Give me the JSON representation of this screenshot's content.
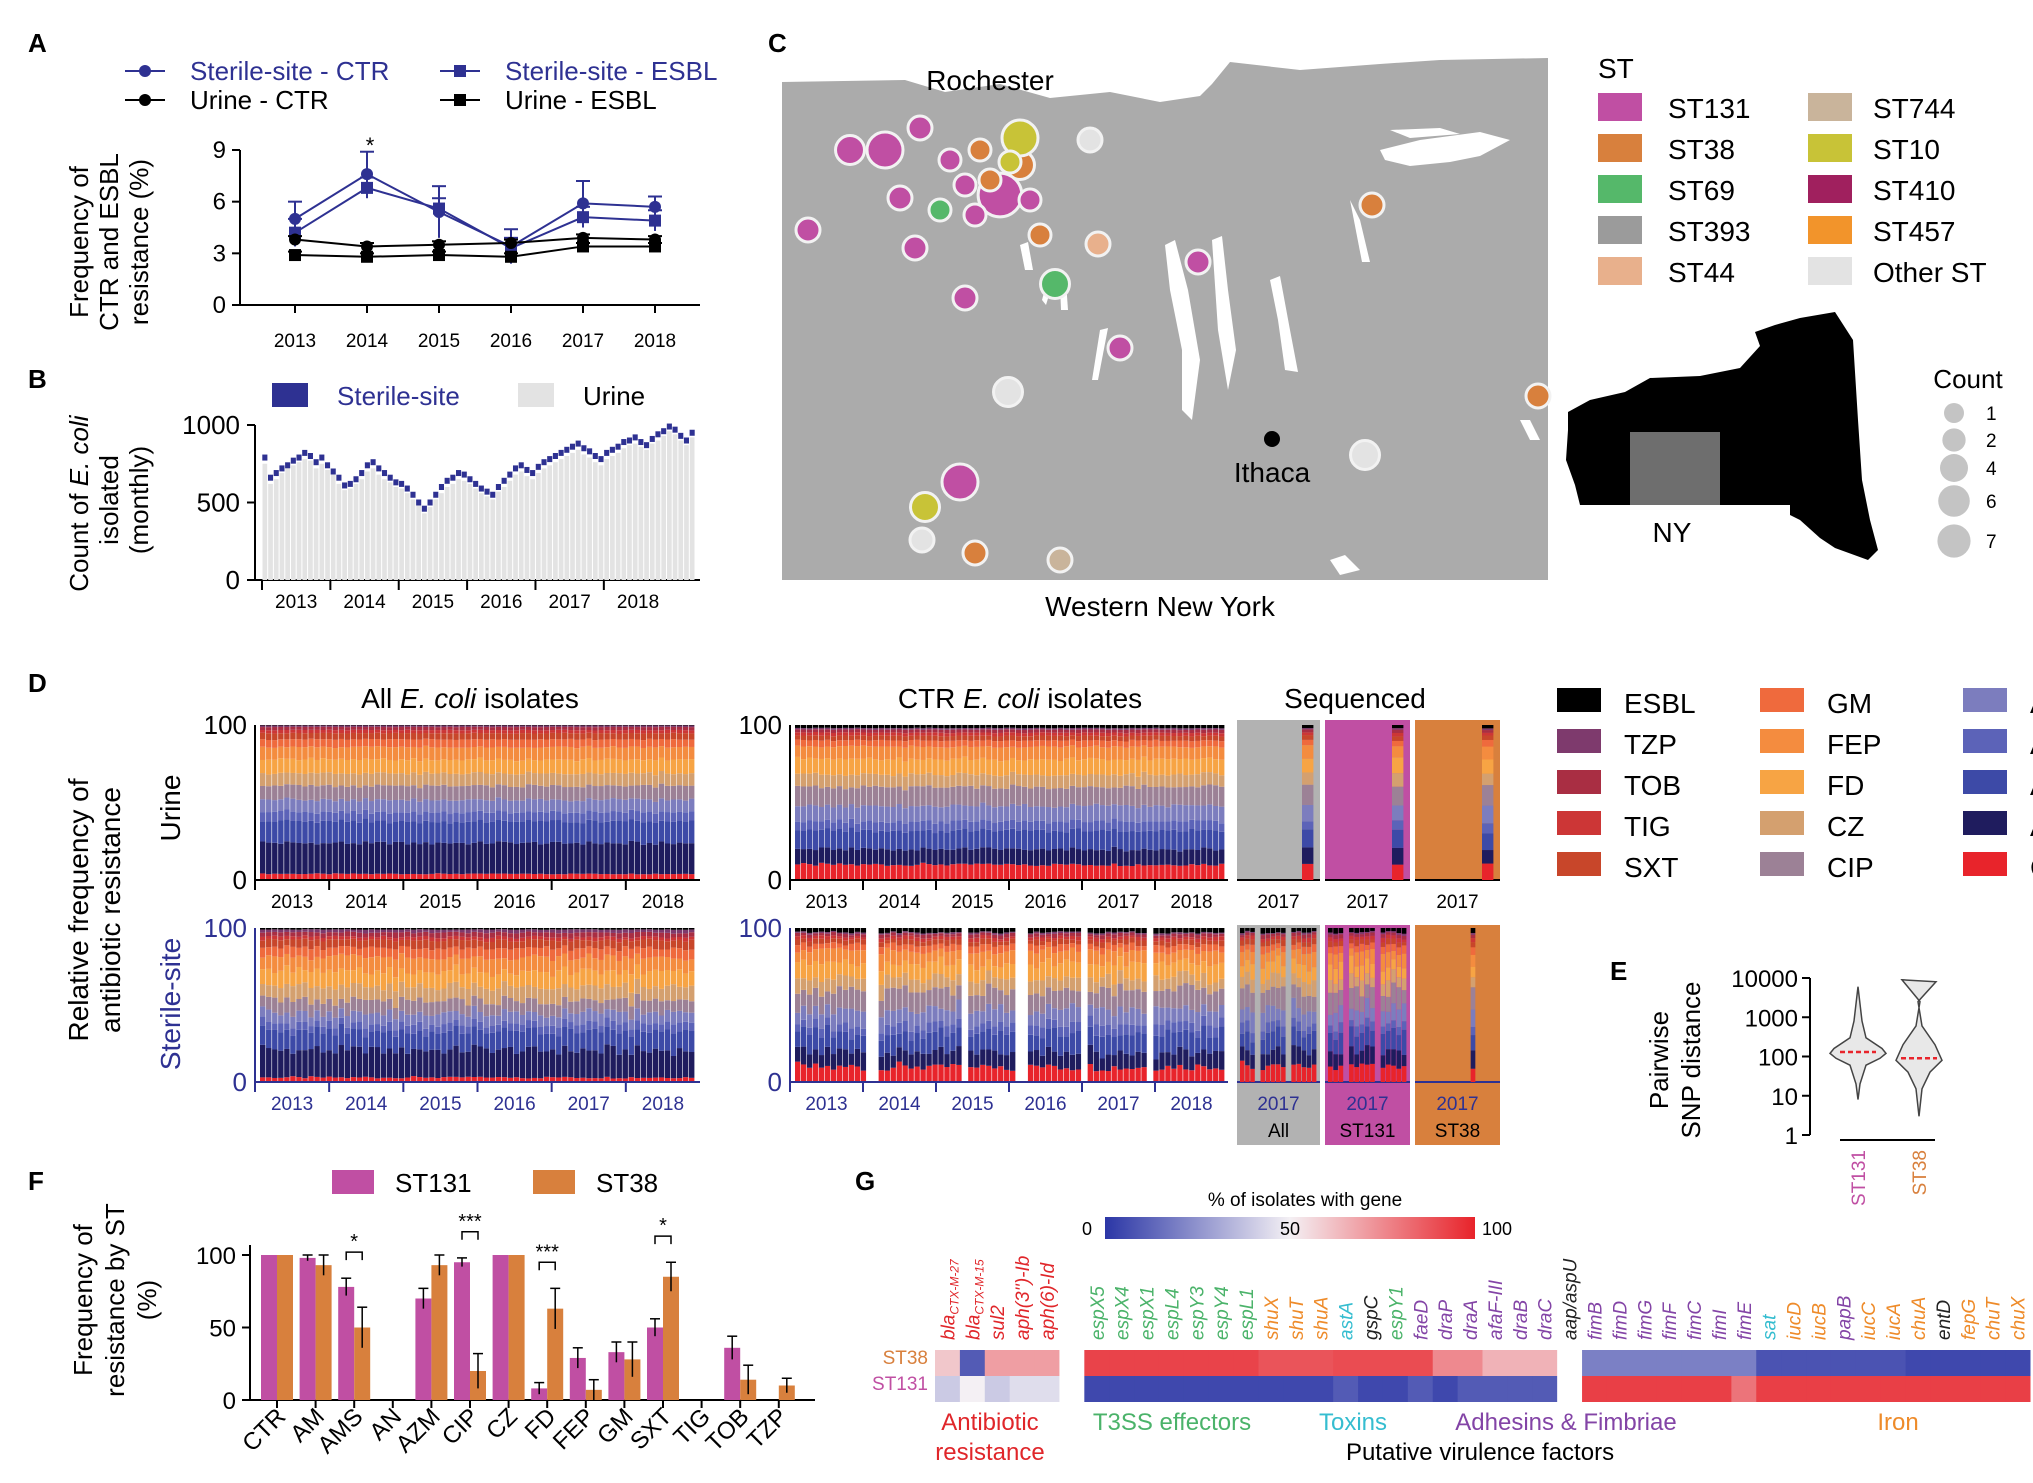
{
  "colors": {
    "sterile": "#2e3192",
    "black": "#000000",
    "magenta": "#c04fa3",
    "orange": "#d8803d",
    "map_land": "#ababab",
    "map_water": "#ffffff"
  },
  "panels": {
    "A": "A",
    "B": "B",
    "C": "C",
    "D": "D",
    "E": "E",
    "F": "F",
    "G": "G"
  },
  "panelA": {
    "type": "line",
    "legend": [
      "Sterile-site - CTR",
      "Sterile-site - ESBL",
      "Urine - CTR",
      "Urine - ESBL"
    ],
    "ylabel1": "Frequency of",
    "ylabel2": "CTR and ESBL",
    "ylabel3": "resistance (%)",
    "yticks": [
      "0",
      "3",
      "6",
      "9"
    ],
    "ylim": [
      0,
      9
    ],
    "years": [
      "2013",
      "2014",
      "2015",
      "2016",
      "2017",
      "2018"
    ],
    "significance": "*",
    "series": [
      {
        "name": "Sterile-site - CTR",
        "marker": "circle",
        "color": "#2e3192",
        "values": [
          5.0,
          7.6,
          5.4,
          3.4,
          5.9,
          5.7
        ],
        "errors": [
          1.0,
          1.3,
          1.5,
          1.0,
          1.3,
          0.6
        ]
      },
      {
        "name": "Sterile-site - ESBL",
        "marker": "square",
        "color": "#2e3192",
        "values": [
          4.2,
          6.8,
          5.6,
          3.3,
          5.1,
          4.9
        ],
        "errors": [
          0.8,
          0.6,
          0.6,
          0.6,
          0.6,
          0.6
        ]
      },
      {
        "name": "Urine - CTR",
        "marker": "circle",
        "color": "#000000",
        "values": [
          3.8,
          3.4,
          3.5,
          3.6,
          3.9,
          3.8
        ],
        "errors": [
          0.2,
          0.2,
          0.2,
          0.2,
          0.2,
          0.2
        ]
      },
      {
        "name": "Urine - ESBL",
        "marker": "square",
        "color": "#000000",
        "values": [
          2.9,
          2.8,
          2.9,
          2.8,
          3.4,
          3.4
        ],
        "errors": [
          0.2,
          0.2,
          0.2,
          0.2,
          0.2,
          0.2
        ]
      }
    ]
  },
  "panelB": {
    "type": "bar",
    "legend_sterile": "Sterile-site",
    "legend_urine": "Urine",
    "ylabel_prefix": "Count of ",
    "ylabel_italic": "E. coli",
    "ylabel2": "isolated",
    "ylabel3": "(monthly)",
    "yticks": [
      "0",
      "500",
      "1000"
    ],
    "ylim": [
      0,
      1000
    ],
    "years": [
      "2013",
      "2014",
      "2015",
      "2016",
      "2017",
      "2018"
    ],
    "urine_monthly": [
      750,
      620,
      650,
      690,
      720,
      740,
      760,
      780,
      770,
      720,
      750,
      710,
      680,
      620,
      580,
      590,
      620,
      650,
      700,
      720,
      680,
      650,
      630,
      600,
      590,
      560,
      520,
      480,
      430,
      470,
      520,
      560,
      600,
      620,
      650,
      640,
      620,
      590,
      560,
      540,
      520,
      570,
      600,
      640,
      680,
      700,
      670,
      650,
      690,
      720,
      740,
      760,
      780,
      800,
      820,
      840,
      810,
      790,
      760,
      740,
      780,
      800,
      820,
      850,
      870,
      880,
      860,
      840,
      880,
      900,
      930,
      960,
      940,
      900,
      870,
      920
    ],
    "sterile_monthly": [
      790,
      660,
      690,
      720,
      740,
      770,
      790,
      820,
      800,
      760,
      790,
      740,
      700,
      660,
      610,
      620,
      650,
      690,
      740,
      760,
      720,
      690,
      660,
      630,
      620,
      590,
      550,
      500,
      460,
      500,
      550,
      600,
      640,
      660,
      690,
      680,
      650,
      620,
      590,
      570,
      550,
      600,
      640,
      680,
      720,
      740,
      710,
      690,
      730,
      760,
      780,
      800,
      820,
      840,
      860,
      880,
      850,
      830,
      800,
      780,
      820,
      840,
      860,
      890,
      900,
      920,
      890,
      870,
      910,
      940,
      960,
      990,
      970,
      930,
      900,
      950
    ]
  },
  "panelC": {
    "title_rochester": "Rochester",
    "title_ithaca": "Ithaca",
    "region_label": "Western New York",
    "st_title": "ST",
    "st_legend": [
      {
        "label": "ST131",
        "color": "#c04fa3"
      },
      {
        "label": "ST38",
        "color": "#d8803d"
      },
      {
        "label": "ST69",
        "color": "#55b86a"
      },
      {
        "label": "ST393",
        "color": "#9b9b9b"
      },
      {
        "label": "ST44",
        "color": "#e8b08c"
      },
      {
        "label": "ST744",
        "color": "#c9b49b"
      },
      {
        "label": "ST10",
        "color": "#c8c337"
      },
      {
        "label": "ST410",
        "color": "#a0205e"
      },
      {
        "label": "ST457",
        "color": "#f2942b"
      },
      {
        "label": "Other ST",
        "color": "#e3e3e3"
      }
    ],
    "state_label": "NY",
    "count_title": "Count",
    "count_legend": [
      "1",
      "2",
      "4",
      "6",
      "7"
    ],
    "points": [
      {
        "color": "#c04fa3",
        "count": 2
      },
      {
        "color": "#c04fa3",
        "count": 4
      },
      {
        "color": "#c04fa3",
        "count": 1
      },
      {
        "color": "#c04fa3",
        "count": 1
      },
      {
        "color": "#c04fa3",
        "count": 1
      },
      {
        "color": "#c04fa3",
        "count": 1
      },
      {
        "color": "#c04fa3",
        "count": 1
      },
      {
        "color": "#c04fa3",
        "count": 1
      },
      {
        "color": "#e3e3e3",
        "count": 1
      },
      {
        "color": "#d8803d",
        "count": 1
      },
      {
        "color": "#e8b08c",
        "count": 1
      },
      {
        "color": "#d8803d",
        "count": 2
      },
      {
        "color": "#55b86a",
        "count": 2
      },
      {
        "color": "#e3e3e3",
        "count": 2
      },
      {
        "color": "#d8803d",
        "count": 1
      },
      {
        "color": "#e3e3e3",
        "count": 2
      },
      {
        "color": "#c04fa3",
        "count": 4
      },
      {
        "color": "#c8c337",
        "count": 2
      },
      {
        "color": "#e3e3e3",
        "count": 1
      },
      {
        "color": "#d8803d",
        "count": 1
      },
      {
        "color": "#c9b49b",
        "count": 1
      },
      {
        "color": "#c04fa3",
        "count": 1
      },
      {
        "color": "#c04fa3",
        "count": 7
      },
      {
        "color": "#c8c337",
        "count": 4
      }
    ]
  },
  "panelD": {
    "title_all_pre": "All ",
    "title_all_italic": "E. coli",
    "title_all_post": " isolates",
    "title_ctr_pre": "CTR ",
    "title_ctr_italic": "E. coli",
    "title_ctr_post": " isolates",
    "title_seq": "Sequenced",
    "ylabel1": "Relative frequency of",
    "ylabel2": "antibiotic resistance",
    "row_urine": "Urine",
    "row_sterile": "Sterile-site",
    "yticks": [
      "0",
      "100"
    ],
    "years": [
      "2013",
      "2014",
      "2015",
      "2016",
      "2017",
      "2018"
    ],
    "seq_year": "2017",
    "seq_groups": [
      "All",
      "ST131",
      "ST38"
    ],
    "legend": [
      {
        "label": "ESBL",
        "color": "#000000"
      },
      {
        "label": "TZP",
        "color": "#7e3a6d"
      },
      {
        "label": "TOB",
        "color": "#a92e43"
      },
      {
        "label": "TIG",
        "color": "#cc3636"
      },
      {
        "label": "SXT",
        "color": "#c8462a"
      },
      {
        "label": "GM",
        "color": "#ef6a3d"
      },
      {
        "label": "FEP",
        "color": "#f48c3f"
      },
      {
        "label": "FD",
        "color": "#f7a444"
      },
      {
        "label": "CZ",
        "color": "#d4a06f"
      },
      {
        "label": "CIP",
        "color": "#9c8196"
      },
      {
        "label": "AZM",
        "color": "#7c7dbe"
      },
      {
        "label": "AN",
        "color": "#5c63b8"
      },
      {
        "label": "AMS",
        "color": "#3d4aa7"
      },
      {
        "label": "AM",
        "color": "#1f1c5e"
      },
      {
        "label": "CTR",
        "color": "#e8242b"
      }
    ],
    "stack_order": [
      "CTR",
      "AM",
      "AMS",
      "AN",
      "AZM",
      "CIP",
      "CZ",
      "FD",
      "FEP",
      "GM",
      "SXT",
      "TIG",
      "TOB",
      "TZP",
      "ESBL"
    ],
    "urine_all_profile": [
      4,
      20,
      14,
      6,
      8,
      9,
      8,
      9,
      8,
      5,
      4,
      2,
      2,
      1,
      0
    ],
    "sterile_all_profile": [
      3,
      18,
      12,
      5,
      7,
      8,
      9,
      10,
      9,
      6,
      5,
      2,
      3,
      2,
      1
    ],
    "urine_ctr_profile": [
      10,
      10,
      12,
      6,
      10,
      12,
      8,
      10,
      8,
      4,
      3,
      2,
      2,
      1,
      2
    ],
    "sterile_ctr_profile": [
      10,
      10,
      12,
      6,
      10,
      12,
      8,
      10,
      8,
      4,
      3,
      2,
      2,
      1,
      3
    ]
  },
  "panelE": {
    "type": "violin",
    "ylabel1": "Pairwise",
    "ylabel2": "SNP distance",
    "yticks": [
      "1",
      "10",
      "100",
      "1000",
      "10000"
    ],
    "categories": [
      "ST131",
      "ST38"
    ],
    "medians": [
      130,
      90
    ]
  },
  "panelF": {
    "type": "bar",
    "legend": [
      "ST131",
      "ST38"
    ],
    "ylabel1": "Frequency of",
    "ylabel2": "resistance by ST",
    "ylabel3": "(%)",
    "yticks": [
      "0",
      "50",
      "100"
    ],
    "ylim": [
      0,
      100
    ],
    "categories": [
      "CTR",
      "AM",
      "AMS",
      "AN",
      "AZM",
      "CIP",
      "CZ",
      "FD",
      "FEP",
      "GM",
      "SXT",
      "TIG",
      "TOB",
      "TZP"
    ],
    "series": [
      {
        "name": "ST131",
        "values": [
          100,
          98,
          78,
          0,
          70,
          95,
          100,
          8,
          29,
          33,
          50,
          0,
          36,
          0
        ],
        "errors": [
          0,
          2,
          6,
          0,
          7,
          3,
          0,
          4,
          7,
          7,
          6,
          0,
          8,
          0
        ]
      },
      {
        "name": "ST38",
        "values": [
          100,
          93,
          50,
          0,
          93,
          20,
          100,
          63,
          7,
          28,
          85,
          0,
          14,
          10
        ],
        "errors": [
          0,
          7,
          14,
          0,
          7,
          12,
          0,
          14,
          7,
          12,
          10,
          0,
          10,
          5
        ]
      }
    ],
    "significance": [
      {
        "pair": "AMS",
        "label": "*"
      },
      {
        "pair": "CIP",
        "label": "***"
      },
      {
        "pair": "FD",
        "label": "***"
      },
      {
        "pair": "SXT",
        "label": "*"
      }
    ]
  },
  "panelG": {
    "type": "heatmap",
    "scale_title": "% of isolates with gene",
    "scale_ticks": [
      "0",
      "50",
      "100"
    ],
    "rows": [
      "ST38",
      "ST131"
    ],
    "genes": [
      {
        "name": "bla",
        "sub": "CTX-M-27",
        "group": "ab",
        "st38": 60,
        "st131": 40
      },
      {
        "name": "bla",
        "sub": "CTX-M-15",
        "group": "ab",
        "st38": 10,
        "st131": 50
      },
      {
        "name": "sul2",
        "sub": "",
        "group": "ab",
        "st38": 70,
        "st131": 40
      },
      {
        "name": "aph(3'')-Ib",
        "sub": "",
        "group": "ab",
        "st38": 70,
        "st131": 45
      },
      {
        "name": "aph(6)-Id",
        "sub": "",
        "group": "ab",
        "st38": 70,
        "st131": 45
      },
      {
        "name": "",
        "sub": "",
        "group": "gap",
        "st38": -1,
        "st131": -1
      },
      {
        "name": "espX5",
        "sub": "",
        "group": "t3",
        "st38": 92,
        "st131": 5
      },
      {
        "name": "espX4",
        "sub": "",
        "group": "t3",
        "st38": 92,
        "st131": 5
      },
      {
        "name": "espX1",
        "sub": "",
        "group": "t3",
        "st38": 92,
        "st131": 5
      },
      {
        "name": "espL4",
        "sub": "",
        "group": "t3",
        "st38": 92,
        "st131": 5
      },
      {
        "name": "espY3",
        "sub": "",
        "group": "t3",
        "st38": 92,
        "st131": 5
      },
      {
        "name": "espY4",
        "sub": "",
        "group": "t3",
        "st38": 92,
        "st131": 5
      },
      {
        "name": "espL1",
        "sub": "",
        "group": "t3",
        "st38": 92,
        "st131": 5
      },
      {
        "name": "shuX",
        "sub": "",
        "group": "iron",
        "st38": 88,
        "st131": 5
      },
      {
        "name": "shuT",
        "sub": "",
        "group": "iron",
        "st38": 88,
        "st131": 5
      },
      {
        "name": "shuA",
        "sub": "",
        "group": "iron",
        "st38": 88,
        "st131": 5
      },
      {
        "name": "astA",
        "sub": "",
        "group": "tox",
        "st38": 90,
        "st131": 10
      },
      {
        "name": "gspC",
        "sub": "",
        "group": "other",
        "st38": 90,
        "st131": 5
      },
      {
        "name": "espY1",
        "sub": "",
        "group": "t3",
        "st38": 90,
        "st131": 5
      },
      {
        "name": "faeD",
        "sub": "",
        "group": "adh",
        "st38": 90,
        "st131": 10
      },
      {
        "name": "draP",
        "sub": "",
        "group": "adh",
        "st38": 75,
        "st131": 5
      },
      {
        "name": "draA",
        "sub": "",
        "group": "adh",
        "st38": 75,
        "st131": 10
      },
      {
        "name": "afaF-III",
        "sub": "",
        "group": "adh",
        "st38": 65,
        "st131": 10
      },
      {
        "name": "draB",
        "sub": "",
        "group": "adh",
        "st38": 65,
        "st131": 10
      },
      {
        "name": "draC",
        "sub": "",
        "group": "adh",
        "st38": 65,
        "st131": 10
      },
      {
        "name": "aap/aspU",
        "sub": "",
        "group": "other",
        "st38": -1,
        "st131": -1
      },
      {
        "name": "fimB",
        "sub": "",
        "group": "adh",
        "st38": 20,
        "st131": 93
      },
      {
        "name": "fimD",
        "sub": "",
        "group": "adh",
        "st38": 20,
        "st131": 93
      },
      {
        "name": "fimG",
        "sub": "",
        "group": "adh",
        "st38": 20,
        "st131": 93
      },
      {
        "name": "fimF",
        "sub": "",
        "group": "adh",
        "st38": 20,
        "st131": 93
      },
      {
        "name": "fimC",
        "sub": "",
        "group": "adh",
        "st38": 20,
        "st131": 93
      },
      {
        "name": "fimI",
        "sub": "",
        "group": "adh",
        "st38": 20,
        "st131": 93
      },
      {
        "name": "fimE",
        "sub": "",
        "group": "adh",
        "st38": 20,
        "st131": 80
      },
      {
        "name": "sat",
        "sub": "",
        "group": "tox",
        "st38": 8,
        "st131": 93
      },
      {
        "name": "iucD",
        "sub": "",
        "group": "iron",
        "st38": 8,
        "st131": 93
      },
      {
        "name": "iucB",
        "sub": "",
        "group": "iron",
        "st38": 8,
        "st131": 93
      },
      {
        "name": "papB",
        "sub": "",
        "group": "adh",
        "st38": 8,
        "st131": 93
      },
      {
        "name": "iucC",
        "sub": "",
        "group": "iron",
        "st38": 8,
        "st131": 93
      },
      {
        "name": "iucA",
        "sub": "",
        "group": "iron",
        "st38": 8,
        "st131": 93
      },
      {
        "name": "chuA",
        "sub": "",
        "group": "iron",
        "st38": 5,
        "st131": 93
      },
      {
        "name": "entD",
        "sub": "",
        "group": "other",
        "st38": 5,
        "st131": 93
      },
      {
        "name": "fepG",
        "sub": "",
        "group": "iron",
        "st38": 5,
        "st131": 93
      },
      {
        "name": "chuT",
        "sub": "",
        "group": "iron",
        "st38": 5,
        "st131": 93
      },
      {
        "name": "chuX",
        "sub": "",
        "group": "iron",
        "st38": 5,
        "st131": 93
      }
    ],
    "group_labels": {
      "ab1": "Antibiotic",
      "ab2": "resistance",
      "t3": "T3SS effectors",
      "tox": "Toxins",
      "adh": "Adhesins & Fimbriae",
      "iron": "Iron",
      "pvf": "Putative virulence factors"
    }
  }
}
